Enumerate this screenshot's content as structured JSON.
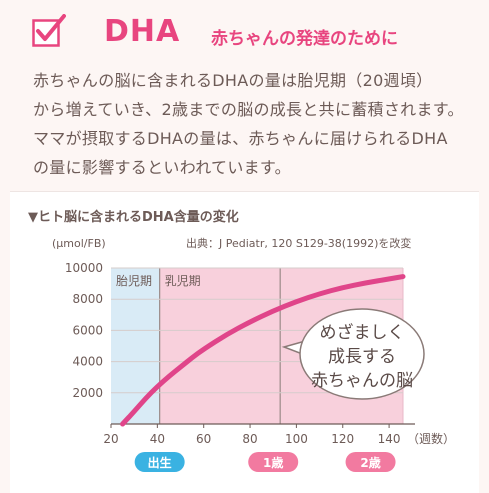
{
  "header": {
    "title": "DHA",
    "subtitle": "赤ちゃんの発達のために",
    "accent_color": "#e8457f",
    "icon": "checkbox-icon"
  },
  "body_lines": [
    "赤ちゃんの脳に含まれるDHAの量は胎児期（20週頃）",
    "から増えていき、2歳までの脳の成長と共に蓄積されます。",
    "ママが摂取するDHAの量は、赤ちゃんに届けられるDHA",
    "の量に影響するといわれています。"
  ],
  "chart_data": {
    "type": "line",
    "title": "▼ヒト脳に含まれるDHA含量の変化",
    "ylabel": "(μmol/FB)",
    "xlabel": "（週数）",
    "source": "出典：J Pediatr, 120 S129-38(1992)を改変",
    "xlim": [
      20,
      146
    ],
    "ylim": [
      0,
      10000
    ],
    "xticks": [
      20,
      40,
      60,
      80,
      100,
      120,
      140
    ],
    "yticks": [
      2000,
      4000,
      6000,
      8000,
      10000
    ],
    "series": [
      {
        "color": "#e0458a",
        "x": [
          25,
          30,
          35,
          40,
          45,
          50,
          55,
          60,
          70,
          80,
          90,
          100,
          110,
          120,
          130,
          140,
          146
        ],
        "y": [
          0,
          800,
          1650,
          2400,
          3050,
          3650,
          4250,
          4800,
          5750,
          6550,
          7250,
          7850,
          8350,
          8750,
          9050,
          9300,
          9450
        ]
      }
    ],
    "regions": [
      {
        "label": "胎児期",
        "x": [
          20,
          41
        ],
        "color": "#d9ebf6"
      },
      {
        "label": "乳児期",
        "x": [
          41,
          146
        ],
        "color": "#f8d0dc"
      }
    ],
    "vlines": [
      93
    ],
    "badges": [
      {
        "label": "出生",
        "x": 41,
        "color": "#3ab2e2"
      },
      {
        "label": "1歳",
        "x": 90,
        "color": "#f27aa0"
      },
      {
        "label": "2歳",
        "x": 132,
        "color": "#f27aa0"
      }
    ],
    "callout": [
      "めざましく",
      "成長する",
      "赤ちゃんの脳"
    ]
  }
}
